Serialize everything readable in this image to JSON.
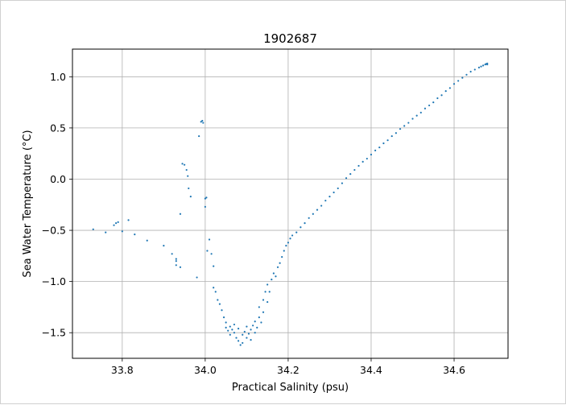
{
  "chart_data": {
    "type": "scatter",
    "title": "1902687",
    "xlabel": "Practical Salinity (psu)",
    "ylabel": "Sea Water Temperature (°C)",
    "xlim": [
      33.68,
      34.73
    ],
    "ylim": [
      -1.75,
      1.27
    ],
    "grid": true,
    "marker_color": "#1f77b4",
    "xticks": [
      {
        "value": 33.8,
        "label": "33.8"
      },
      {
        "value": 34.0,
        "label": "34.0"
      },
      {
        "value": 34.2,
        "label": "34.2"
      },
      {
        "value": 34.4,
        "label": "34.4"
      },
      {
        "value": 34.6,
        "label": "34.6"
      }
    ],
    "yticks": [
      {
        "value": 1.0,
        "label": "1.0"
      },
      {
        "value": 0.5,
        "label": "0.5"
      },
      {
        "value": 0.0,
        "label": "0.0"
      },
      {
        "value": -0.5,
        "label": "−0.5"
      },
      {
        "value": -1.0,
        "label": "−1.0"
      },
      {
        "value": -1.5,
        "label": "−1.5"
      }
    ],
    "points": [
      [
        33.73,
        -0.49
      ],
      [
        33.76,
        -0.52
      ],
      [
        33.78,
        -0.45
      ],
      [
        33.785,
        -0.43
      ],
      [
        33.79,
        -0.42
      ],
      [
        33.8,
        -0.51
      ],
      [
        33.815,
        -0.4
      ],
      [
        33.83,
        -0.54
      ],
      [
        33.86,
        -0.6
      ],
      [
        33.9,
        -0.65
      ],
      [
        33.92,
        -0.73
      ],
      [
        33.93,
        -0.78
      ],
      [
        33.93,
        -0.8
      ],
      [
        33.93,
        -0.84
      ],
      [
        33.94,
        -0.86
      ],
      [
        33.94,
        -0.34
      ],
      [
        33.945,
        0.15
      ],
      [
        33.95,
        0.14
      ],
      [
        33.955,
        0.09
      ],
      [
        33.958,
        0.03
      ],
      [
        33.96,
        -0.09
      ],
      [
        33.965,
        -0.17
      ],
      [
        33.98,
        -0.96
      ],
      [
        33.985,
        0.42
      ],
      [
        33.99,
        0.56
      ],
      [
        33.993,
        0.57
      ],
      [
        33.995,
        0.55
      ],
      [
        34.0,
        -0.27
      ],
      [
        34.0,
        -0.19
      ],
      [
        34.003,
        -0.18
      ],
      [
        34.005,
        -0.7
      ],
      [
        34.01,
        -0.59
      ],
      [
        34.015,
        -0.73
      ],
      [
        34.02,
        -0.85
      ],
      [
        34.02,
        -1.06
      ],
      [
        34.025,
        -1.1
      ],
      [
        34.03,
        -1.18
      ],
      [
        34.035,
        -1.22
      ],
      [
        34.04,
        -1.28
      ],
      [
        34.045,
        -1.35
      ],
      [
        34.05,
        -1.4
      ],
      [
        34.05,
        -1.45
      ],
      [
        34.055,
        -1.48
      ],
      [
        34.06,
        -1.44
      ],
      [
        34.06,
        -1.52
      ],
      [
        34.065,
        -1.47
      ],
      [
        34.07,
        -1.5
      ],
      [
        34.07,
        -1.42
      ],
      [
        34.075,
        -1.55
      ],
      [
        34.08,
        -1.46
      ],
      [
        34.08,
        -1.58
      ],
      [
        34.085,
        -1.62
      ],
      [
        34.09,
        -1.52
      ],
      [
        34.09,
        -1.6
      ],
      [
        34.095,
        -1.49
      ],
      [
        34.1,
        -1.55
      ],
      [
        34.1,
        -1.44
      ],
      [
        34.105,
        -1.51
      ],
      [
        34.11,
        -1.47
      ],
      [
        34.11,
        -1.57
      ],
      [
        34.115,
        -1.43
      ],
      [
        34.12,
        -1.5
      ],
      [
        34.12,
        -1.39
      ],
      [
        34.125,
        -1.45
      ],
      [
        34.13,
        -1.35
      ],
      [
        34.13,
        -1.25
      ],
      [
        34.135,
        -1.4
      ],
      [
        34.14,
        -1.3
      ],
      [
        34.14,
        -1.18
      ],
      [
        34.145,
        -1.1
      ],
      [
        34.15,
        -1.2
      ],
      [
        34.15,
        -1.03
      ],
      [
        34.155,
        -1.1
      ],
      [
        34.16,
        -0.98
      ],
      [
        34.165,
        -0.92
      ],
      [
        34.17,
        -0.95
      ],
      [
        34.175,
        -0.86
      ],
      [
        34.18,
        -0.82
      ],
      [
        34.185,
        -0.76
      ],
      [
        34.19,
        -0.7
      ],
      [
        34.195,
        -0.65
      ],
      [
        34.2,
        -0.62
      ],
      [
        34.205,
        -0.58
      ],
      [
        34.21,
        -0.55
      ],
      [
        34.22,
        -0.52
      ],
      [
        34.23,
        -0.47
      ],
      [
        34.24,
        -0.43
      ],
      [
        34.25,
        -0.38
      ],
      [
        34.26,
        -0.34
      ],
      [
        34.27,
        -0.3
      ],
      [
        34.28,
        -0.26
      ],
      [
        34.29,
        -0.21
      ],
      [
        34.3,
        -0.17
      ],
      [
        34.31,
        -0.13
      ],
      [
        34.32,
        -0.09
      ],
      [
        34.33,
        -0.04
      ],
      [
        34.34,
        0.01
      ],
      [
        34.35,
        0.05
      ],
      [
        34.36,
        0.09
      ],
      [
        34.37,
        0.13
      ],
      [
        34.38,
        0.17
      ],
      [
        34.39,
        0.2
      ],
      [
        34.4,
        0.24
      ],
      [
        34.41,
        0.28
      ],
      [
        34.42,
        0.31
      ],
      [
        34.43,
        0.35
      ],
      [
        34.44,
        0.38
      ],
      [
        34.45,
        0.42
      ],
      [
        34.46,
        0.45
      ],
      [
        34.47,
        0.49
      ],
      [
        34.48,
        0.52
      ],
      [
        34.49,
        0.55
      ],
      [
        34.5,
        0.59
      ],
      [
        34.51,
        0.62
      ],
      [
        34.52,
        0.65
      ],
      [
        34.53,
        0.69
      ],
      [
        34.54,
        0.72
      ],
      [
        34.55,
        0.75
      ],
      [
        34.56,
        0.79
      ],
      [
        34.57,
        0.82
      ],
      [
        34.58,
        0.86
      ],
      [
        34.59,
        0.89
      ],
      [
        34.6,
        0.93
      ],
      [
        34.61,
        0.96
      ],
      [
        34.62,
        0.99
      ],
      [
        34.63,
        1.02
      ],
      [
        34.64,
        1.05
      ],
      [
        34.65,
        1.07
      ],
      [
        34.66,
        1.09
      ],
      [
        34.665,
        1.1
      ],
      [
        34.67,
        1.11
      ],
      [
        34.675,
        1.12
      ],
      [
        34.68,
        1.12
      ],
      [
        34.68,
        1.13
      ],
      [
        34.677,
        1.125
      ]
    ]
  }
}
